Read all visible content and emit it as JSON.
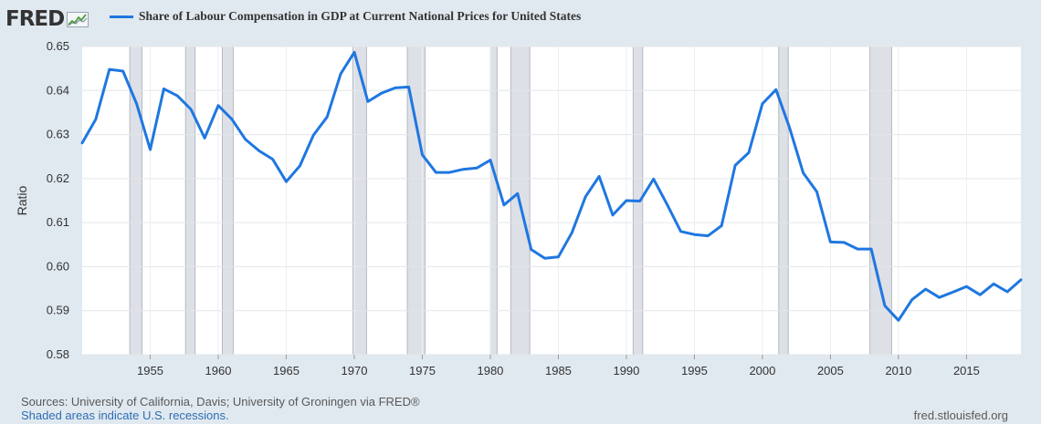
{
  "brand": {
    "name": "FRED",
    "logo_icon": "fred-trend-graph-icon"
  },
  "legend": {
    "label": "Share of Labour Compensation in GDP at Current National Prices for United States",
    "color": "#1f77e0"
  },
  "footer": {
    "sources": "Sources: University of California, Davis; University of Groningen via FRED®",
    "note": "Shaded areas indicate U.S. recessions.",
    "site": "fred.stlouisfed.org"
  },
  "chart_data": {
    "type": "line",
    "ylabel": "Ratio",
    "xlim": [
      1950,
      2019
    ],
    "ylim": [
      0.58,
      0.65
    ],
    "yticks": [
      "0.58",
      "0.59",
      "0.60",
      "0.61",
      "0.62",
      "0.63",
      "0.64",
      "0.65"
    ],
    "xticks": [
      "1955",
      "1960",
      "1965",
      "1970",
      "1975",
      "1980",
      "1985",
      "1990",
      "1995",
      "2000",
      "2005",
      "2010",
      "2015"
    ],
    "grid": true,
    "legend_position": "top-left",
    "line_color": "#1f77e0",
    "recession_color": "#dde0e6",
    "recessions": [
      [
        1953.5,
        1954.4
      ],
      [
        1957.6,
        1958.3
      ],
      [
        1960.3,
        1961.1
      ],
      [
        1969.9,
        1970.9
      ],
      [
        1973.9,
        1975.2
      ],
      [
        1980.0,
        1980.5
      ],
      [
        1981.5,
        1982.9
      ],
      [
        1990.5,
        1991.2
      ],
      [
        2001.2,
        2001.9
      ],
      [
        2007.9,
        2009.5
      ]
    ],
    "series": [
      {
        "x": [
          1950,
          1951,
          1952,
          1953,
          1954,
          1955,
          1956,
          1957,
          1958,
          1959,
          1960,
          1961,
          1962,
          1963,
          1964,
          1965,
          1966,
          1967,
          1968,
          1969,
          1970,
          1971,
          1972,
          1973,
          1974,
          1975,
          1976,
          1977,
          1978,
          1979,
          1980,
          1981,
          1982,
          1983,
          1984,
          1985,
          1986,
          1987,
          1988,
          1989,
          1990,
          1991,
          1992,
          1993,
          1994,
          1995,
          1996,
          1997,
          1998,
          1999,
          2000,
          2001,
          2002,
          2003,
          2004,
          2005,
          2006,
          2007,
          2008,
          2009,
          2010,
          2011,
          2012,
          2013,
          2014,
          2015,
          2016,
          2017,
          2018,
          2019
        ],
        "values": [
          0.6281,
          0.6335,
          0.6448,
          0.6444,
          0.637,
          0.6266,
          0.6404,
          0.6388,
          0.6357,
          0.6292,
          0.6366,
          0.6335,
          0.6289,
          0.6263,
          0.6244,
          0.6193,
          0.6229,
          0.6299,
          0.634,
          0.6438,
          0.6487,
          0.6375,
          0.6394,
          0.6406,
          0.6408,
          0.6254,
          0.6214,
          0.6214,
          0.6221,
          0.6224,
          0.6242,
          0.614,
          0.6166,
          0.6039,
          0.6019,
          0.6022,
          0.6077,
          0.6159,
          0.6205,
          0.6117,
          0.615,
          0.6149,
          0.6199,
          0.6141,
          0.608,
          0.6073,
          0.607,
          0.6093,
          0.623,
          0.6259,
          0.637,
          0.6402,
          0.6315,
          0.6213,
          0.617,
          0.6056,
          0.6055,
          0.604,
          0.604,
          0.5911,
          0.5878,
          0.5925,
          0.5949,
          0.593,
          0.5942,
          0.5955,
          0.5936,
          0.5961,
          0.5943,
          0.597
        ]
      }
    ]
  }
}
